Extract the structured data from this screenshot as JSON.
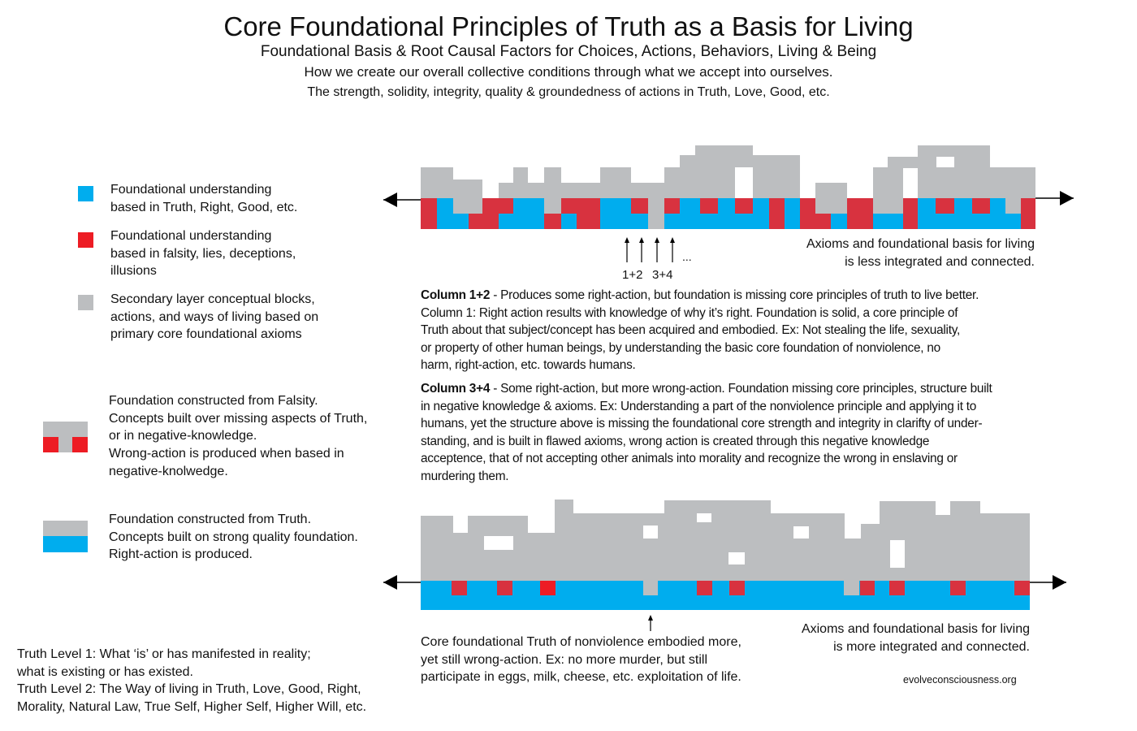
{
  "header": {
    "title": "Core Foundational Principles of Truth as a Basis for Living",
    "subtitle1": "Foundational Basis & Root Causal Factors for Choices, Actions, Behaviors, Living & Being",
    "subtitle2": "How we create our overall collective conditions through what we accept into ourselves.",
    "subtitle3": "The strength, solidity, integrity, quality & groundedness of actions in Truth, Love, Good, etc."
  },
  "colors": {
    "truth_blue": "#00adee",
    "falsity_red": "#d8323f",
    "secondary_gray": "#bcbec0"
  },
  "legend": [
    {
      "icon": "blue-square",
      "lines": [
        "Foundational understanding",
        "based in Truth, Right, Good, etc."
      ]
    },
    {
      "icon": "red-square",
      "lines": [
        "Foundational understanding",
        "based in falsity, lies, deceptions,",
        "illusions"
      ]
    },
    {
      "icon": "gray-square",
      "lines": [
        "Secondary layer conceptual blocks,",
        "actions, and ways of living based on",
        "primary core foundational axioms"
      ]
    },
    {
      "icon": "falsity-foundation",
      "lines": [
        "Foundation constructed from Falsity.",
        "Concepts built over missing aspects of Truth,",
        "or in negative-knowledge.",
        "Wrong-action is produced when based in",
        "negative-knolwedge."
      ]
    },
    {
      "icon": "truth-foundation",
      "lines": [
        "Foundation constructed from Truth.",
        "Concepts built on strong quality foundation.",
        "Right-action is produced."
      ]
    }
  ],
  "truth_levels": [
    "Truth Level 1: What ‘is’  or has manifested in reality;",
    "what is existing or has existed.",
    "Truth Level 2: The Way of living in Truth, Love, Good, Right,",
    "Morality, Natural Law, True Self, Higher Self, Higher Will, etc."
  ],
  "top_diagram": {
    "column_labels": [
      "1+2",
      "3+4"
    ],
    "ellipsis": "...",
    "caption": [
      "Axioms and foundational basis for living",
      "is less integrated and connected."
    ]
  },
  "column_notes": {
    "c12_label": "Column 1+2",
    "c12_lines": [
      " - Produces some right-action, but foundation is missing core principles of truth to live better.",
      "Column 1: Right action results with knowledge of why it’s right. Foundation is solid, a core principle of",
      "Truth about that subject/concept has been acquired and embodied.  Ex: Not stealing the life, sexuality,",
      "or property of other human beings, by understanding the basic core foundation of nonviolence, no",
      "harm, right-action, etc. towards humans."
    ],
    "c34_label": "Column 3+4",
    "c34_lines": [
      " - Some right-action, but more wrong-action. Foundation missing core principles, structure built",
      "in negative knowledge & axioms. Ex: Understanding a part of the nonviolence principle and applying it to",
      "humans, yet the structure above is missing the foundational core strength and integrity in clarifty of under-",
      "standing, and is built in flawed axioms, wrong action is created through this negative knowledge",
      "acceptence, that of not accepting other animals into morality and recognize the wrong in enslaving or",
      "murdering them."
    ]
  },
  "bottom_diagram": {
    "caption_left": [
      "Core foundational Truth of nonviolence embodied more,",
      "yet still wrong-action. Ex: no more murder, but still",
      "participate in eggs, milk, cheese, etc. exploitation of life."
    ],
    "caption_right": [
      "Axioms and foundational basis for living",
      "is more integrated and connected."
    ]
  },
  "footer": {
    "site": "evolveconsciousness.org"
  }
}
